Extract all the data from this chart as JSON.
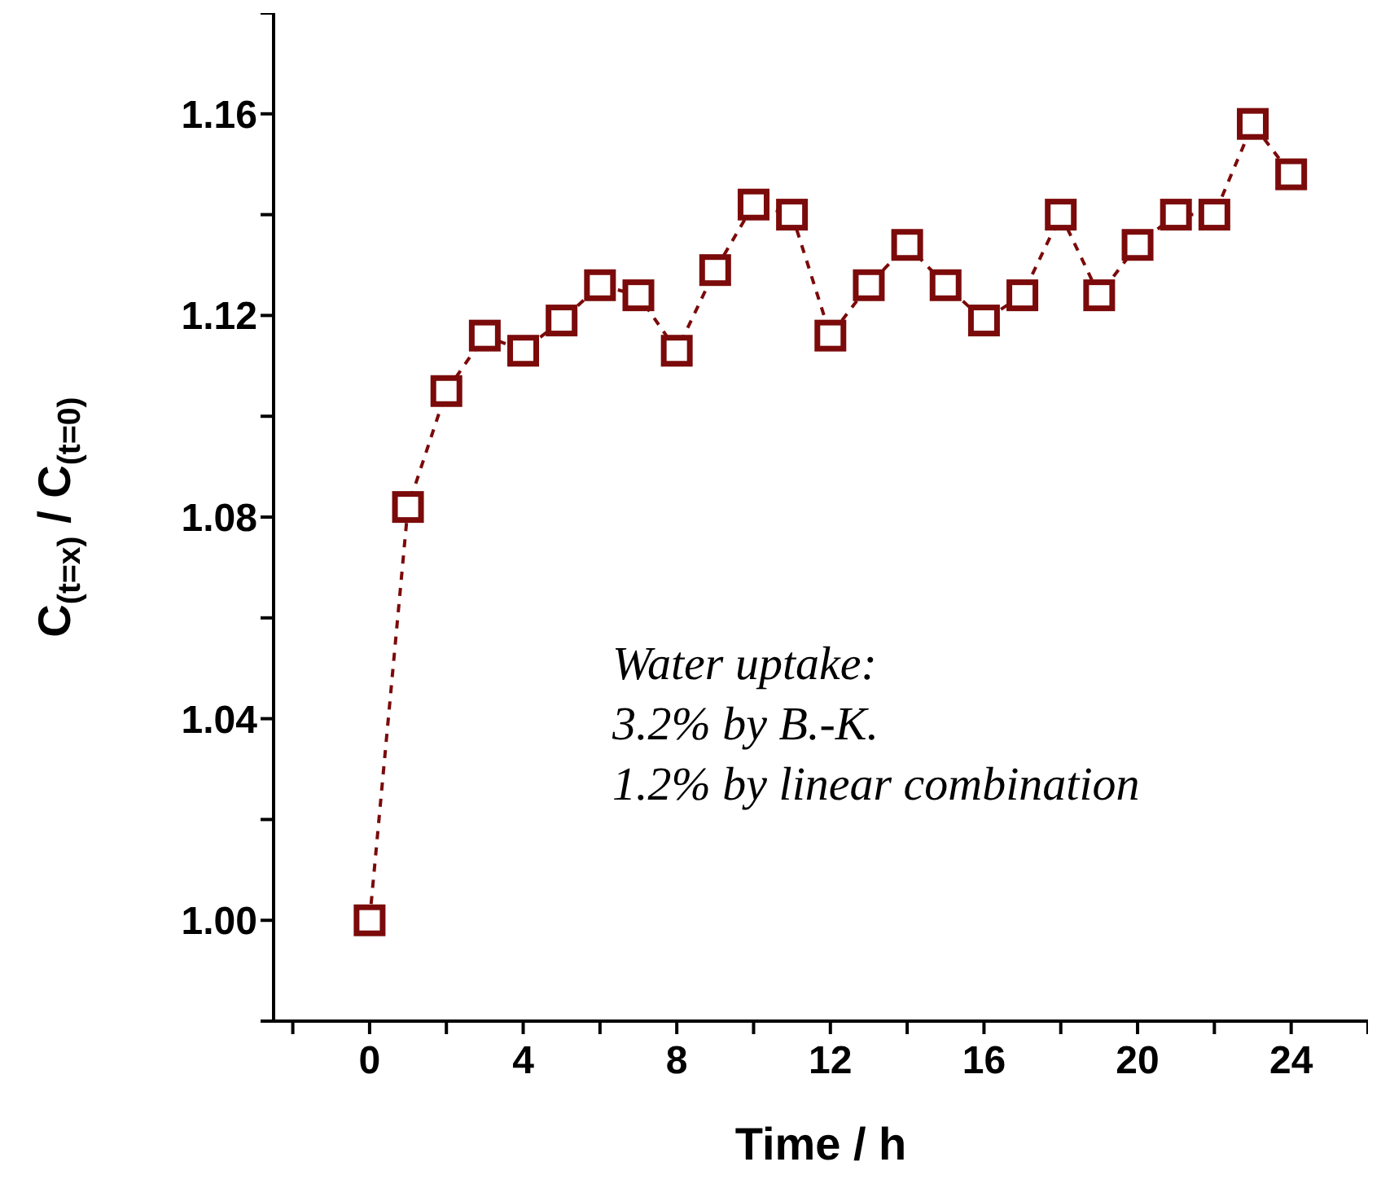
{
  "chart_data": {
    "type": "line",
    "xlabel": "Time / h",
    "ylabel": "C$_{(t=x)}$ / C$_{(t=0)}$",
    "x": [
      0,
      1,
      2,
      3,
      4,
      5,
      6,
      7,
      8,
      9,
      10,
      11,
      12,
      13,
      14,
      15,
      16,
      17,
      18,
      19,
      20,
      21,
      22,
      23,
      24
    ],
    "series": [
      {
        "color": "#7b0a0a",
        "values": [
          1.0,
          1.082,
          1.105,
          1.116,
          1.113,
          1.119,
          1.126,
          1.124,
          1.113,
          1.129,
          1.142,
          1.14,
          1.116,
          1.126,
          1.134,
          1.126,
          1.119,
          1.124,
          1.14,
          1.124,
          1.134,
          1.14,
          1.14,
          1.158,
          1.148
        ]
      }
    ],
    "xlim": [
      -2.5,
      26
    ],
    "ylim": [
      0.98,
      1.18
    ],
    "xticks": [
      {
        "value": -2,
        "label": null
      },
      0,
      {
        "value": 2,
        "label": null
      },
      4,
      {
        "value": 6,
        "label": null
      },
      8,
      {
        "value": 10,
        "label": null
      },
      12,
      {
        "value": 14,
        "label": null
      },
      16,
      {
        "value": 18,
        "label": null
      },
      20,
      {
        "value": 22,
        "label": null
      },
      24,
      {
        "value": 26,
        "label": null
      }
    ],
    "yticks": [
      {
        "value": 0.98,
        "label": null
      },
      {
        "value": 1.0,
        "label": "1.00"
      },
      {
        "value": 1.02,
        "label": null
      },
      1.04,
      {
        "value": 1.06,
        "label": null
      },
      1.08,
      {
        "value": 1.1,
        "label": null
      },
      1.12,
      {
        "value": 1.14,
        "label": null
      },
      1.16,
      {
        "value": 1.18,
        "label": null
      }
    ],
    "marker": "square",
    "line_style": "dashed",
    "grid": false,
    "legend": false,
    "annotations": [
      "Water uptake:",
      "3.2% by B.-K.",
      "1.2% by linear combination"
    ]
  }
}
